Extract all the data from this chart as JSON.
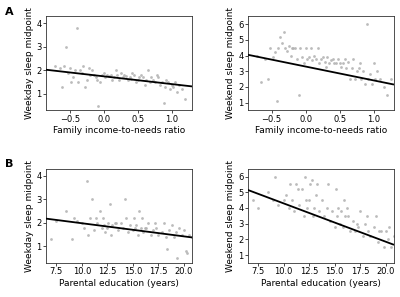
{
  "background_color": "#ffffff",
  "panel_bg": "#ffffff",
  "scatter_color": "#b0b0b0",
  "line_color": "#000000",
  "A_left": {
    "xlabel": "Family income-to-needs ratio",
    "ylabel": "Weekday sleep midpoint",
    "xlim": [
      -0.85,
      1.3
    ],
    "ylim": [
      0.3,
      4.3
    ],
    "xticks": [
      -0.5,
      0.0,
      0.5,
      1.0
    ],
    "yticks": [
      1,
      2,
      3,
      4
    ],
    "line_x": [
      -0.85,
      1.3
    ],
    "line_y": [
      2.03,
      1.32
    ],
    "scatter_x": [
      -0.72,
      -0.65,
      -0.62,
      -0.58,
      -0.55,
      -0.52,
      -0.5,
      -0.48,
      -0.45,
      -0.42,
      -0.4,
      -0.38,
      -0.35,
      -0.32,
      -0.3,
      -0.28,
      -0.25,
      -0.22,
      -0.2,
      -0.18,
      -0.15,
      -0.12,
      -0.1,
      -0.08,
      -0.05,
      -0.02,
      0.0,
      0.02,
      0.05,
      0.08,
      0.1,
      0.12,
      0.15,
      0.18,
      0.2,
      0.22,
      0.25,
      0.28,
      0.3,
      0.32,
      0.35,
      0.38,
      0.4,
      0.42,
      0.45,
      0.48,
      0.5,
      0.52,
      0.55,
      0.58,
      0.6,
      0.62,
      0.65,
      0.68,
      0.7,
      0.72,
      0.75,
      0.78,
      0.8,
      0.82,
      0.85,
      0.88,
      0.9,
      0.92,
      0.95,
      0.98,
      1.0,
      1.02,
      1.05,
      1.08,
      1.1,
      1.15,
      1.2
    ],
    "scatter_y": [
      2.2,
      2.1,
      1.3,
      2.2,
      3.0,
      1.9,
      2.1,
      1.5,
      1.7,
      2.0,
      3.8,
      1.5,
      2.0,
      1.9,
      2.2,
      1.3,
      1.6,
      2.1,
      1.8,
      2.0,
      1.8,
      1.7,
      1.6,
      0.5,
      1.5,
      1.8,
      1.9,
      1.7,
      1.8,
      1.75,
      1.8,
      1.6,
      1.7,
      2.0,
      1.8,
      1.6,
      1.9,
      1.7,
      1.8,
      1.75,
      1.6,
      1.7,
      1.65,
      1.9,
      1.8,
      1.5,
      1.6,
      1.7,
      1.8,
      1.7,
      1.4,
      1.6,
      2.0,
      1.5,
      1.7,
      1.6,
      1.5,
      1.8,
      1.7,
      1.4,
      1.5,
      0.6,
      1.3,
      1.6,
      1.5,
      1.2,
      1.4,
      1.3,
      1.5,
      1.1,
      1.4,
      1.2,
      0.8
    ]
  },
  "A_right": {
    "xlabel": "Family income-to-needs ratio",
    "ylabel": "Weekend sleep midpoint",
    "xlim": [
      -0.85,
      1.3
    ],
    "ylim": [
      0.5,
      6.5
    ],
    "xticks": [
      -0.5,
      0.0,
      0.5,
      1.0
    ],
    "yticks": [
      1,
      2,
      3,
      4,
      5,
      6
    ],
    "line_x": [
      -0.85,
      1.3
    ],
    "line_y": [
      4.05,
      2.15
    ],
    "scatter_x": [
      -0.72,
      -0.65,
      -0.6,
      -0.55,
      -0.52,
      -0.48,
      -0.45,
      -0.42,
      -0.4,
      -0.38,
      -0.35,
      -0.32,
      -0.3,
      -0.28,
      -0.25,
      -0.22,
      -0.2,
      -0.18,
      -0.15,
      -0.12,
      -0.1,
      -0.08,
      -0.05,
      -0.02,
      0.0,
      0.02,
      0.05,
      0.08,
      0.1,
      0.12,
      0.15,
      0.18,
      0.2,
      0.22,
      0.25,
      0.28,
      0.3,
      0.32,
      0.35,
      0.38,
      0.4,
      0.42,
      0.45,
      0.48,
      0.5,
      0.52,
      0.55,
      0.58,
      0.6,
      0.62,
      0.65,
      0.68,
      0.7,
      0.72,
      0.75,
      0.78,
      0.8,
      0.82,
      0.85,
      0.88,
      0.9,
      0.92,
      0.95,
      0.98,
      1.0,
      1.02,
      1.05,
      1.1,
      1.15,
      1.2,
      1.25
    ],
    "scatter_y": [
      4.0,
      2.3,
      3.8,
      2.5,
      4.5,
      3.9,
      4.2,
      1.1,
      4.5,
      5.2,
      4.8,
      5.5,
      4.5,
      4.3,
      4.6,
      4.0,
      4.5,
      4.5,
      4.5,
      3.8,
      1.5,
      4.5,
      3.9,
      3.5,
      4.5,
      3.8,
      3.9,
      4.5,
      3.7,
      4.0,
      3.8,
      4.5,
      3.5,
      3.8,
      3.9,
      3.6,
      3.3,
      3.9,
      3.5,
      3.7,
      3.8,
      3.5,
      3.5,
      3.8,
      3.5,
      3.3,
      3.5,
      3.8,
      3.2,
      3.6,
      2.5,
      3.2,
      3.8,
      2.5,
      3.0,
      3.2,
      3.5,
      2.5,
      3.0,
      2.2,
      6.0,
      2.5,
      2.8,
      2.2,
      3.5,
      2.5,
      3.0,
      2.5,
      2.0,
      1.5,
      2.5
    ]
  },
  "B_left": {
    "xlabel": "Parental education (years)",
    "ylabel": "Weekday sleep midpoint",
    "xlim": [
      6.5,
      20.8
    ],
    "ylim": [
      0.3,
      4.3
    ],
    "xticks": [
      7.5,
      10.0,
      12.5,
      15.0,
      17.5,
      20.0
    ],
    "yticks": [
      1,
      2,
      3,
      4
    ],
    "line_x": [
      6.5,
      20.8
    ],
    "line_y": [
      2.18,
      1.38
    ],
    "scatter_x": [
      7.0,
      7.5,
      8.5,
      9.0,
      9.5,
      10.0,
      10.2,
      10.5,
      10.8,
      11.0,
      11.2,
      11.5,
      11.8,
      12.0,
      12.2,
      12.3,
      12.5,
      12.6,
      12.8,
      12.9,
      13.0,
      13.2,
      13.5,
      13.8,
      14.0,
      14.2,
      14.5,
      14.7,
      15.0,
      15.2,
      15.3,
      15.5,
      15.6,
      15.8,
      16.0,
      16.2,
      16.5,
      16.8,
      17.0,
      17.2,
      17.5,
      17.8,
      18.0,
      18.2,
      18.5,
      18.8,
      19.0,
      19.2,
      19.5,
      19.8,
      20.0,
      20.2,
      20.5,
      20.8,
      9.2,
      10.6,
      11.4,
      12.1,
      13.3,
      14.3,
      15.1,
      15.9,
      16.3,
      17.3,
      18.3,
      19.3,
      20.3
    ],
    "scatter_y": [
      1.3,
      2.1,
      2.5,
      1.3,
      2.1,
      2.0,
      1.8,
      3.8,
      2.2,
      3.0,
      1.7,
      2.0,
      2.5,
      1.8,
      1.9,
      1.6,
      1.8,
      2.0,
      2.8,
      1.5,
      1.9,
      2.0,
      1.7,
      2.0,
      1.8,
      3.0,
      1.6,
      1.9,
      1.7,
      1.8,
      1.9,
      1.5,
      2.5,
      1.8,
      1.6,
      1.8,
      2.0,
      1.5,
      1.7,
      2.0,
      1.5,
      1.6,
      2.0,
      1.4,
      1.7,
      1.9,
      1.4,
      1.6,
      1.8,
      1.5,
      1.7,
      0.8,
      1.5,
      1.4,
      2.2,
      1.5,
      2.2,
      2.2,
      2.0,
      2.2,
      2.2,
      2.2,
      1.8,
      1.8,
      0.9,
      0.5,
      0.7
    ]
  },
  "B_right": {
    "xlabel": "Parental education (years)",
    "ylabel": "Weekend sleep midpoint",
    "xlim": [
      6.5,
      20.8
    ],
    "ylim": [
      0.5,
      6.5
    ],
    "xticks": [
      7.5,
      10.0,
      12.5,
      15.0,
      17.5,
      20.0
    ],
    "yticks": [
      1,
      2,
      3,
      4,
      5,
      6
    ],
    "line_x": [
      6.5,
      20.8
    ],
    "line_y": [
      5.15,
      1.65
    ],
    "scatter_x": [
      7.0,
      7.5,
      8.5,
      9.0,
      9.5,
      10.0,
      10.2,
      10.5,
      10.8,
      11.0,
      11.2,
      11.5,
      11.8,
      12.0,
      12.2,
      12.3,
      12.5,
      12.6,
      12.8,
      12.9,
      13.0,
      13.2,
      13.5,
      13.8,
      14.0,
      14.2,
      14.5,
      14.7,
      15.0,
      15.2,
      15.3,
      15.5,
      15.6,
      15.8,
      16.0,
      16.2,
      16.5,
      16.8,
      17.0,
      17.2,
      17.5,
      17.8,
      18.0,
      18.2,
      18.5,
      18.8,
      19.0,
      19.2,
      19.5,
      19.8,
      20.0,
      20.2,
      20.5,
      20.8,
      9.2,
      10.6,
      11.4,
      12.1,
      13.3,
      14.3,
      15.1,
      15.9,
      16.3,
      17.3,
      18.3,
      19.3,
      20.3
    ],
    "scatter_y": [
      4.5,
      4.0,
      5.0,
      4.5,
      4.2,
      4.5,
      4.8,
      4.0,
      4.5,
      3.8,
      5.5,
      4.2,
      5.2,
      3.5,
      4.5,
      4.0,
      4.5,
      5.5,
      5.8,
      3.5,
      4.0,
      4.8,
      3.8,
      4.5,
      3.5,
      4.0,
      3.2,
      3.8,
      2.8,
      3.5,
      4.0,
      3.0,
      3.8,
      2.8,
      3.5,
      4.0,
      2.5,
      3.2,
      2.5,
      3.0,
      3.8,
      2.2,
      3.0,
      3.5,
      2.2,
      2.8,
      3.5,
      1.8,
      2.5,
      1.5,
      2.5,
      2.0,
      1.5,
      2.2,
      6.0,
      5.5,
      5.2,
      6.0,
      5.5,
      5.5,
      5.2,
      4.5,
      3.5,
      2.8,
      2.5,
      2.5,
      2.8
    ]
  },
  "label_fontsize": 6.5,
  "tick_fontsize": 6,
  "panel_label_fontsize": 8
}
